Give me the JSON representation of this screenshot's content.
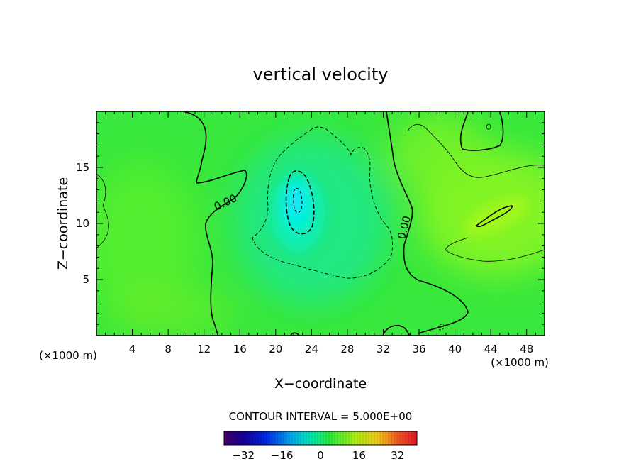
{
  "chart_data": {
    "type": "heatmap",
    "title": "vertical velocity",
    "xlabel": "X−coordinate",
    "ylabel": "Z−coordinate",
    "xlim": [
      0,
      50
    ],
    "ylim": [
      0,
      20
    ],
    "x_ticks": [
      4,
      8,
      12,
      16,
      20,
      24,
      28,
      32,
      36,
      40,
      44,
      48
    ],
    "x_tick_labels": [
      "4",
      "8",
      "12",
      "16",
      "20",
      "24",
      "28",
      "32",
      "36",
      "40",
      "44",
      "48"
    ],
    "y_ticks": [
      5,
      10,
      15
    ],
    "y_tick_labels": [
      "5",
      "10",
      "15"
    ],
    "x_unit_left": "(×1000 m)",
    "x_unit_right": "(×1000 m)",
    "contour_interval_label": "CONTOUR INTERVAL = 5.000E+00",
    "contour_labels": [
      "0.00",
      "0.00"
    ],
    "colorbar": {
      "min": -40,
      "max": 40,
      "ticks": [
        -32,
        -16,
        0,
        16,
        32
      ],
      "tick_labels": [
        "−32",
        "−16",
        "0",
        "16",
        "32"
      ]
    },
    "features": [
      {
        "kind": "downdraft_core",
        "x": 22,
        "z": 11.5,
        "value": -15
      },
      {
        "kind": "updraft",
        "x": 44,
        "z": 10.5,
        "value": 6
      }
    ],
    "colors": {
      "background_field": "#33e633",
      "downdraft": "#00ffdd",
      "updraft": "#b0ff00",
      "contour": "#000000"
    }
  }
}
